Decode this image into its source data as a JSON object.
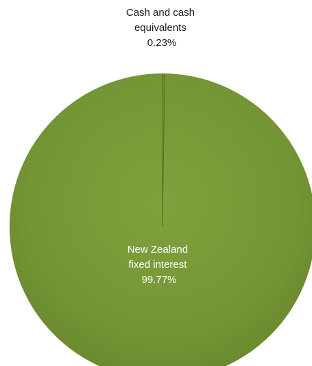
{
  "chart_data": {
    "type": "pie",
    "slices": [
      {
        "label_lines": [
          "Cash and cash",
          "equivalents"
        ],
        "value_label": "0.23%",
        "value": 0.23,
        "color": "#6f8f2f",
        "label_color": "#1a1a1a"
      },
      {
        "label_lines": [
          "New Zealand",
          "fixed interest"
        ],
        "value_label": "99.77%",
        "value": 99.77,
        "color": "#76983a",
        "label_color": "#ffffff"
      }
    ],
    "start_angle_deg": 0,
    "direction": "clockwise",
    "legend": "none",
    "slice_separator_color": "#4f6b1f"
  }
}
